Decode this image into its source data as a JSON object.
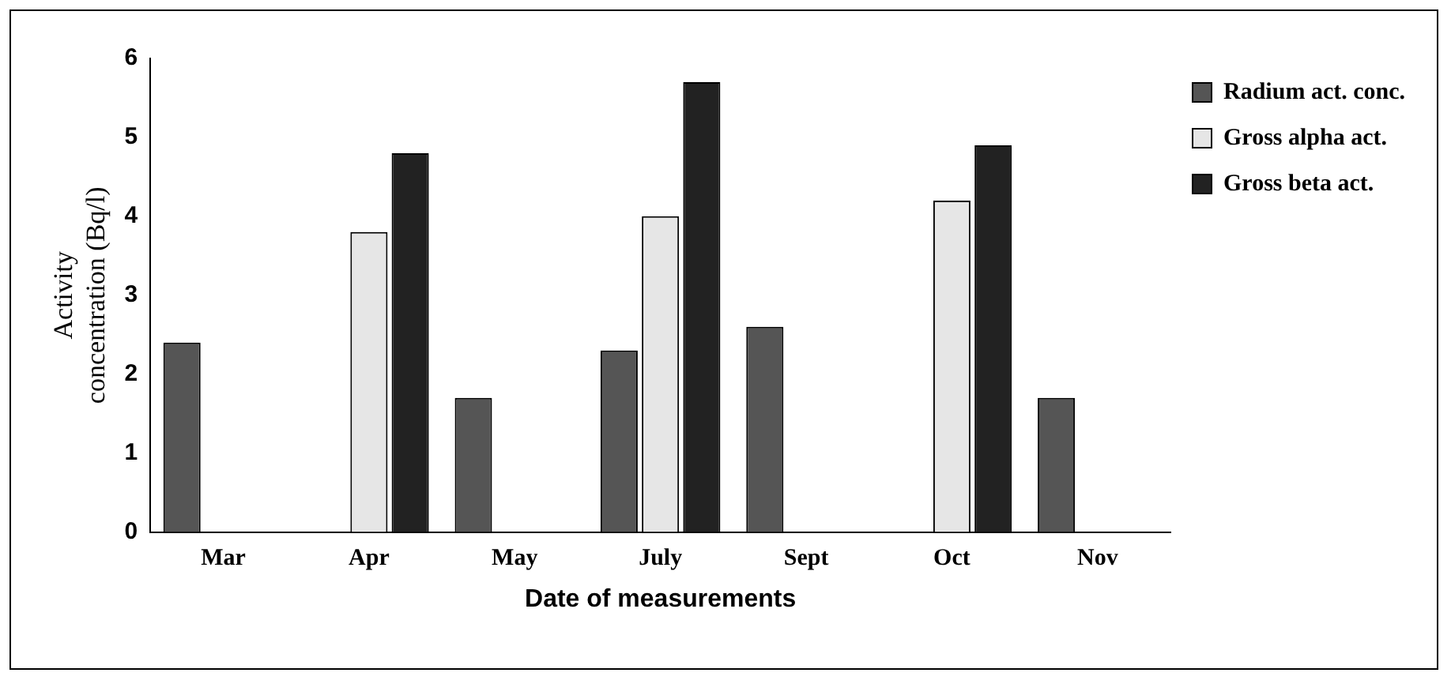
{
  "chart_data": {
    "type": "bar",
    "categories": [
      "Mar",
      "Apr",
      "May",
      "July",
      "Sept",
      "Oct",
      "Nov"
    ],
    "series": [
      {
        "name": "Radium act. conc.",
        "color": "#555555",
        "values": [
          2.4,
          null,
          1.7,
          2.3,
          2.6,
          null,
          1.7
        ]
      },
      {
        "name": "Gross alpha act.",
        "color": "#e6e6e6",
        "values": [
          null,
          3.8,
          null,
          4.0,
          null,
          4.2,
          null
        ]
      },
      {
        "name": "Gross beta act.",
        "color": "#222222",
        "values": [
          null,
          4.8,
          null,
          5.7,
          null,
          4.9,
          null
        ]
      }
    ],
    "xlabel": "Date of measurements",
    "ylabel": "Activity concentration (Bq/l)",
    "ylim": [
      0,
      6
    ],
    "yticks": [
      0,
      1,
      2,
      3,
      4,
      5,
      6
    ],
    "grid": false,
    "legend": "right"
  }
}
